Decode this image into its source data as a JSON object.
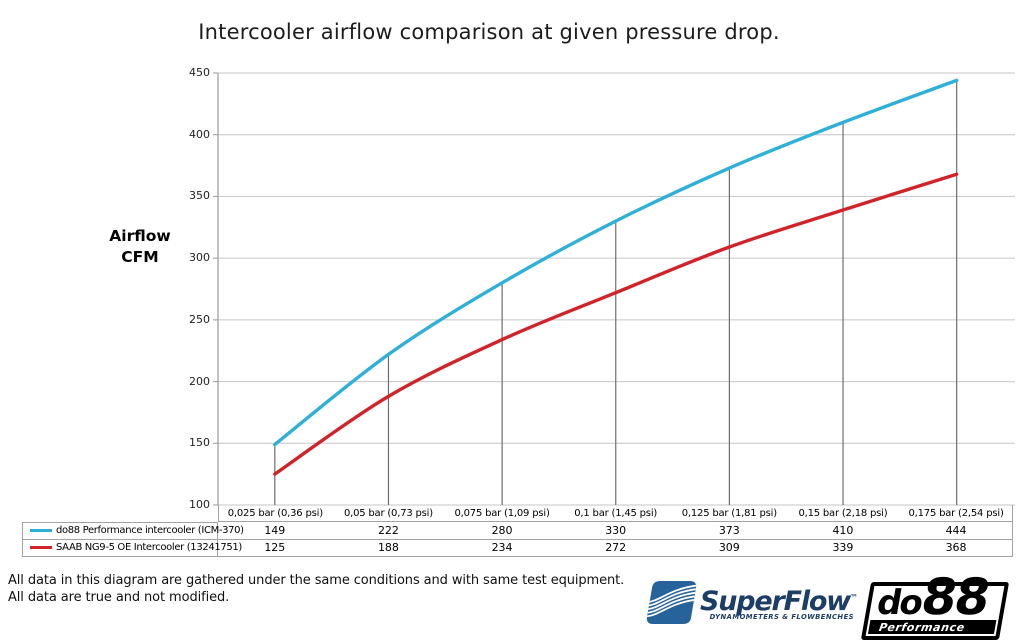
{
  "title": "Intercooler airflow comparison at given pressure drop.",
  "y_axis_label": {
    "line1": "Airflow",
    "line2": "CFM"
  },
  "chart_data": {
    "type": "line",
    "title": "Intercooler airflow comparison at given pressure drop.",
    "ylabel": "Airflow CFM",
    "xlabel": "",
    "ylim": [
      100,
      450
    ],
    "ytick_step": 50,
    "grid": "horizontal",
    "smooth": true,
    "legend_position": "table-left",
    "categories": [
      "0,025 bar (0,36 psi)",
      "0,05 bar (0,73 psi)",
      "0,075 bar (1,09 psi)",
      "0,1 bar (1,45 psi)",
      "0,125 bar (1,81 psi)",
      "0,15 bar (2,18 psi)",
      "0,175 bar (2,54 psi)"
    ],
    "series": [
      {
        "name": "do88 Performance intercooler (ICM-370)",
        "color": "#2FB0D9",
        "values": [
          149,
          222,
          280,
          330,
          373,
          410,
          444
        ]
      },
      {
        "name": "SAAB NG9-5 OE Intercooler (13241751)",
        "color": "#D0242A",
        "values": [
          125,
          188,
          234,
          272,
          309,
          339,
          368
        ]
      }
    ],
    "gridline_color": "#C6C6C6",
    "axis_color": "#9A9A9A",
    "drop_line_color": "#6E6E6E"
  },
  "footer": {
    "line1": "All data in this diagram are gathered under the same conditions and with same test equipment.",
    "line2": "All data are true and not modified."
  },
  "logos": {
    "superflow": {
      "wordmark": "SuperFlow",
      "trademark": "™",
      "subtitle": "DYNAMOMETERS & FLOWBENCHES",
      "navy": "#1B3D66",
      "icon_blue": "#26639A"
    },
    "do88": {
      "wordmark_prefix": "do",
      "wordmark_number": "88",
      "subtitle": "Performance",
      "black": "#000000"
    }
  }
}
